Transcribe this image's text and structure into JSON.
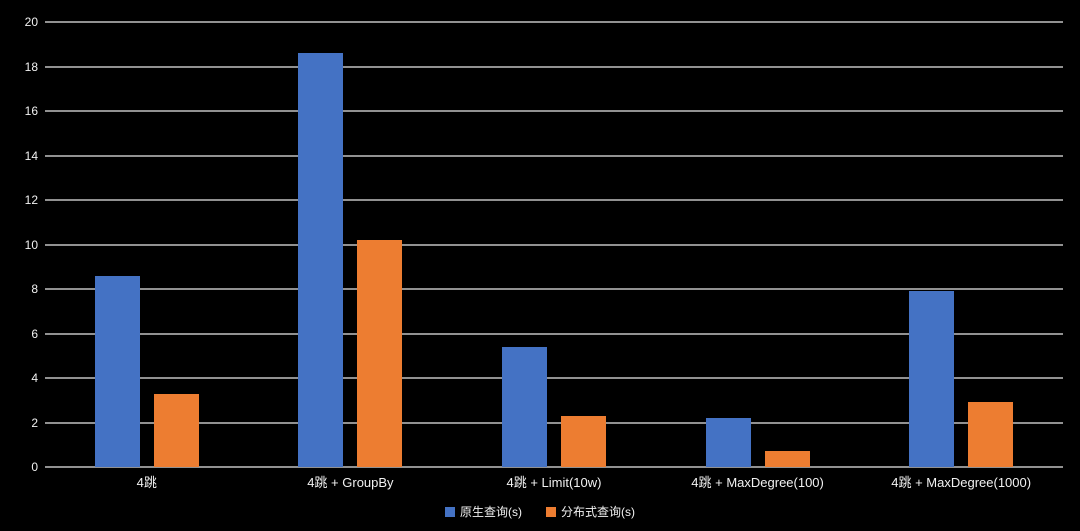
{
  "chart_data": {
    "type": "bar",
    "title": "",
    "categories": [
      "4跳",
      "4跳 + GroupBy",
      "4跳 + Limit(10w)",
      "4跳 + MaxDegree(100)",
      "4跳 + MaxDegree(1000)"
    ],
    "series": [
      {
        "name": "原生查询(s)",
        "color": "#4472C4",
        "values": [
          8.6,
          18.6,
          5.4,
          2.2,
          7.9
        ]
      },
      {
        "name": "分布式查询(s)",
        "color": "#ED7D31",
        "values": [
          3.3,
          10.2,
          2.3,
          0.7,
          2.9
        ]
      }
    ],
    "xlabel": "",
    "ylabel": "",
    "ylim": [
      0,
      20
    ],
    "ytick_step": 2,
    "grid": true,
    "legend_position": "bottom",
    "colors": {
      "background": "#000000",
      "gridline": "#919191",
      "text": "#f2f2f2"
    }
  }
}
